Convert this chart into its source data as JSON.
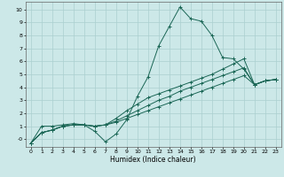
{
  "title": "",
  "xlabel": "Humidex (Indice chaleur)",
  "background_color": "#cce8e8",
  "grid_color": "#aacfcf",
  "line_color": "#1a6655",
  "xlim": [
    -0.5,
    23.5
  ],
  "ylim": [
    -0.6,
    10.6
  ],
  "xticks": [
    0,
    1,
    2,
    3,
    4,
    5,
    6,
    7,
    8,
    9,
    10,
    11,
    12,
    13,
    14,
    15,
    16,
    17,
    18,
    19,
    20,
    21,
    22,
    23
  ],
  "yticks": [
    0,
    1,
    2,
    3,
    4,
    5,
    6,
    7,
    8,
    9,
    10
  ],
  "ytick_labels": [
    "-0",
    "1",
    "2",
    "3",
    "4",
    "5",
    "6",
    "7",
    "8",
    "9",
    "10"
  ],
  "lines": [
    {
      "x": [
        0,
        1,
        2,
        3,
        4,
        5,
        6,
        7,
        8,
        9,
        10,
        11,
        12,
        13,
        14,
        15,
        16,
        17,
        18,
        19,
        20,
        21,
        22,
        23
      ],
      "y": [
        -0.3,
        1.0,
        1.0,
        1.1,
        1.2,
        1.1,
        0.6,
        -0.2,
        0.4,
        1.5,
        3.3,
        4.8,
        7.2,
        8.7,
        10.2,
        9.3,
        9.1,
        8.0,
        6.3,
        6.2,
        5.4,
        4.2,
        4.5,
        4.6
      ]
    },
    {
      "x": [
        0,
        1,
        2,
        3,
        4,
        5,
        6,
        7,
        8,
        9,
        10,
        11,
        12,
        13,
        14,
        15,
        16,
        17,
        18,
        19,
        20,
        21,
        22,
        23
      ],
      "y": [
        -0.3,
        0.5,
        0.7,
        1.0,
        1.1,
        1.1,
        1.0,
        1.1,
        1.6,
        2.2,
        2.7,
        3.2,
        3.5,
        3.8,
        4.1,
        4.4,
        4.7,
        5.0,
        5.4,
        5.8,
        6.2,
        4.2,
        4.5,
        4.6
      ]
    },
    {
      "x": [
        0,
        1,
        2,
        3,
        4,
        5,
        6,
        7,
        8,
        9,
        10,
        11,
        12,
        13,
        14,
        15,
        16,
        17,
        18,
        19,
        20,
        21,
        22,
        23
      ],
      "y": [
        -0.3,
        0.5,
        0.7,
        1.0,
        1.1,
        1.1,
        1.0,
        1.1,
        1.4,
        1.8,
        2.2,
        2.6,
        3.0,
        3.3,
        3.7,
        4.0,
        4.3,
        4.6,
        4.9,
        5.2,
        5.5,
        4.2,
        4.5,
        4.6
      ]
    },
    {
      "x": [
        0,
        1,
        2,
        3,
        4,
        5,
        6,
        7,
        8,
        9,
        10,
        11,
        12,
        13,
        14,
        15,
        16,
        17,
        18,
        19,
        20,
        21,
        22,
        23
      ],
      "y": [
        -0.3,
        0.5,
        0.7,
        1.0,
        1.1,
        1.1,
        1.0,
        1.1,
        1.3,
        1.6,
        1.9,
        2.2,
        2.5,
        2.8,
        3.1,
        3.4,
        3.7,
        4.0,
        4.3,
        4.6,
        4.9,
        4.2,
        4.5,
        4.6
      ]
    }
  ]
}
